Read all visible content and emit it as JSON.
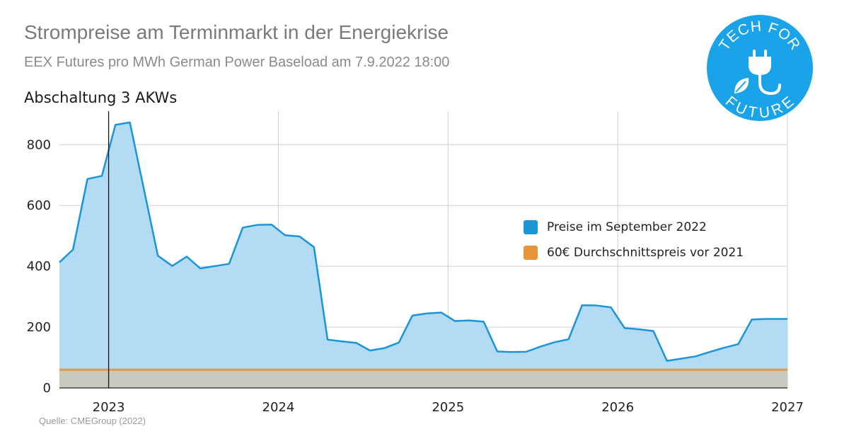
{
  "chart_data": {
    "type": "area",
    "title": "Strompreise am Terminmarkt in der Energiekrise",
    "subtitle": "EEX Futures pro MWh German Power Baseload am 7.9.2022 18:00",
    "source": "Quelle: CMEGroup (2022)",
    "annotation": {
      "label": "Abschaltung 3 AKWs",
      "x": 2023.0
    },
    "xlim": [
      2022.71,
      2027.0
    ],
    "ylim": [
      0,
      910
    ],
    "x_ticks": [
      2023,
      2024,
      2025,
      2026,
      2027
    ],
    "x_tick_labels": [
      "2023",
      "2024",
      "2025",
      "2026",
      "2027"
    ],
    "y_ticks": [
      0,
      200,
      400,
      600,
      800
    ],
    "y_tick_labels": [
      "0",
      "200",
      "400",
      "600",
      "800"
    ],
    "grid": true,
    "legend_position": "center-right",
    "series": [
      {
        "name": "Preise im September 2022",
        "color": "#1a95d8",
        "fill": "#b3dcf4",
        "x": [
          2022.71,
          2022.79,
          2022.875,
          2022.96,
          2023.04,
          2023.125,
          2023.29,
          2023.375,
          2023.46,
          2023.54,
          2023.71,
          2023.79,
          2023.875,
          2023.96,
          2024.04,
          2024.125,
          2024.21,
          2024.29,
          2024.375,
          2024.46,
          2024.54,
          2024.625,
          2024.71,
          2024.79,
          2024.875,
          2024.96,
          2025.04,
          2025.125,
          2025.21,
          2025.29,
          2025.375,
          2025.46,
          2025.54,
          2025.625,
          2025.71,
          2025.79,
          2025.875,
          2025.96,
          2026.04,
          2026.125,
          2026.21,
          2026.29,
          2026.46,
          2026.54,
          2026.625,
          2026.71,
          2026.79,
          2026.875,
          2026.96,
          2027.0
        ],
        "values": [
          413,
          455,
          687,
          697,
          865,
          873,
          435,
          401,
          432,
          393,
          408,
          527,
          536,
          537,
          502,
          498,
          463,
          159,
          153,
          148,
          123,
          131,
          149,
          238,
          245,
          248,
          220,
          222,
          218,
          120,
          118,
          119,
          135,
          150,
          160,
          272,
          271,
          265,
          197,
          193,
          187,
          89,
          104,
          118,
          132,
          144,
          225,
          227,
          227,
          227
        ]
      },
      {
        "name": "60€ Durchschnittspreis vor 2021",
        "color": "#e8943a",
        "fill": "#c8cac0",
        "x": [
          2022.71,
          2027.0
        ],
        "values": [
          60,
          60
        ]
      }
    ]
  },
  "logo": {
    "text_top": "TECH FOR",
    "text_bottom": "FUTURE",
    "color": "#1aa3e8"
  }
}
